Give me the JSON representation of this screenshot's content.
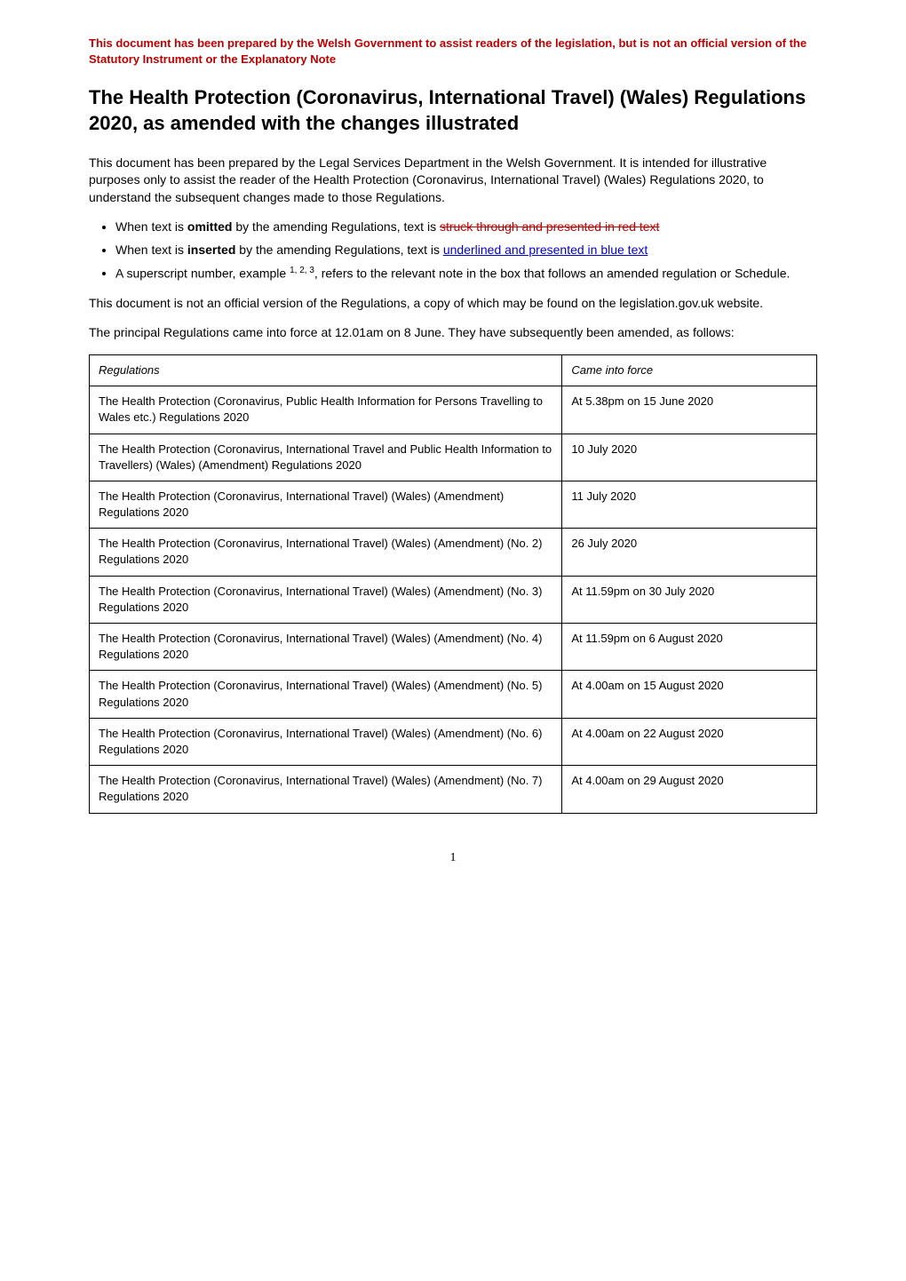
{
  "header_note": "This document has been prepared by the Welsh Government to assist readers of the legislation, but is not an official version of the Statutory Instrument or the Explanatory Note",
  "title": "The Health Protection (Coronavirus, International Travel) (Wales) Regulations 2020, as amended with the changes illustrated",
  "intro": "This document has been prepared by the Legal Services Department in the Welsh Government.  It is intended for illustrative purposes only to assist the reader of the Health Protection (Coronavirus, International Travel) (Wales) Regulations 2020, to understand the subsequent changes made to those Regulations.",
  "bullets": {
    "b1_pre": "When text is ",
    "b1_bold": "omitted",
    "b1_mid": " by the amending Regulations, text is ",
    "b1_strike": "struck through and presented in red text",
    "b2_pre": "When text is ",
    "b2_bold": "inserted",
    "b2_mid": " by the amending Regulations, text is ",
    "b2_underline": "underlined and presented in blue text",
    "b3_pre": "A superscript number, example ",
    "b3_sup": "1, 2, 3",
    "b3_post": ", refers to the relevant note in the box that follows an amended regulation or Schedule."
  },
  "para2": "This document is not an official version of the Regulations, a copy of which may be found on the legislation.gov.uk website.",
  "para3": "The principal Regulations came into force at 12.01am on 8 June.  They have subsequently been amended, as follows:",
  "table": {
    "header_regs": "Regulations",
    "header_date": "Came into force",
    "rows": [
      {
        "reg": "The Health Protection (Coronavirus, Public Health Information for Persons Travelling to Wales etc.) Regulations 2020",
        "date": "At 5.38pm on 15 June 2020"
      },
      {
        "reg": "The Health Protection (Coronavirus, International Travel and Public Health Information to Travellers) (Wales) (Amendment) Regulations 2020",
        "date": "10 July 2020"
      },
      {
        "reg": "The Health Protection (Coronavirus, International Travel) (Wales) (Amendment) Regulations 2020",
        "date": "11 July 2020"
      },
      {
        "reg": "The Health Protection (Coronavirus, International Travel) (Wales) (Amendment) (No. 2) Regulations 2020",
        "date": "26 July 2020"
      },
      {
        "reg": "The Health Protection (Coronavirus, International Travel) (Wales) (Amendment) (No. 3) Regulations 2020",
        "date": "At 11.59pm on 30 July 2020"
      },
      {
        "reg": "The Health Protection (Coronavirus, International Travel) (Wales) (Amendment) (No. 4) Regulations 2020",
        "date": "At 11.59pm on 6 August 2020"
      },
      {
        "reg": "The Health Protection (Coronavirus, International Travel) (Wales) (Amendment) (No. 5) Regulations 2020",
        "date": "At 4.00am on 15 August 2020"
      },
      {
        "reg": "The Health Protection (Coronavirus, International Travel) (Wales) (Amendment) (No. 6) Regulations 2020",
        "date": "At 4.00am on 22 August 2020"
      },
      {
        "reg": "The Health Protection (Coronavirus, International Travel) (Wales) (Amendment) (No. 7) Regulations 2020",
        "date": "At 4.00am on 29 August 2020"
      }
    ]
  },
  "page_number": "1",
  "styles": {
    "header_color": "#c00000",
    "strike_color": "#c00000",
    "underline_color": "#0000cc",
    "border_color": "#000000"
  }
}
